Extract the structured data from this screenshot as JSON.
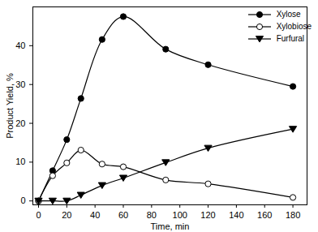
{
  "chart_data": {
    "type": "line",
    "x_label": "Time, min",
    "y_label": "Product Yield, %",
    "x": [
      0,
      10,
      20,
      30,
      45,
      60,
      90,
      120,
      180
    ],
    "series": [
      {
        "name": "Xylose",
        "color": "#000000",
        "marker": "circle",
        "line_style": "solid",
        "values": [
          0,
          7.8,
          15.8,
          26.4,
          41.6,
          47.5,
          39.1,
          35.1,
          29.5
        ]
      },
      {
        "name": "Xylobiose",
        "color": "#000000",
        "marker": "circle-open",
        "line_style": "solid",
        "values": [
          0,
          6.5,
          9.8,
          13.1,
          9.5,
          8.8,
          5.4,
          4.4,
          0.9
        ]
      },
      {
        "name": "Furfural",
        "color": "#000000",
        "marker": "triangle-down",
        "line_style": "solid",
        "values": [
          0,
          0,
          0,
          1.5,
          4.0,
          5.9,
          9.9,
          13.6,
          18.5
        ]
      }
    ],
    "xlim": [
      -4,
      190
    ],
    "xticks": [
      0,
      20,
      40,
      60,
      80,
      100,
      120,
      140,
      160,
      180
    ],
    "ylim": [
      -1,
      50
    ],
    "yticks": [
      0,
      10,
      20,
      30,
      40
    ],
    "legend": "top-right",
    "grid": false
  }
}
